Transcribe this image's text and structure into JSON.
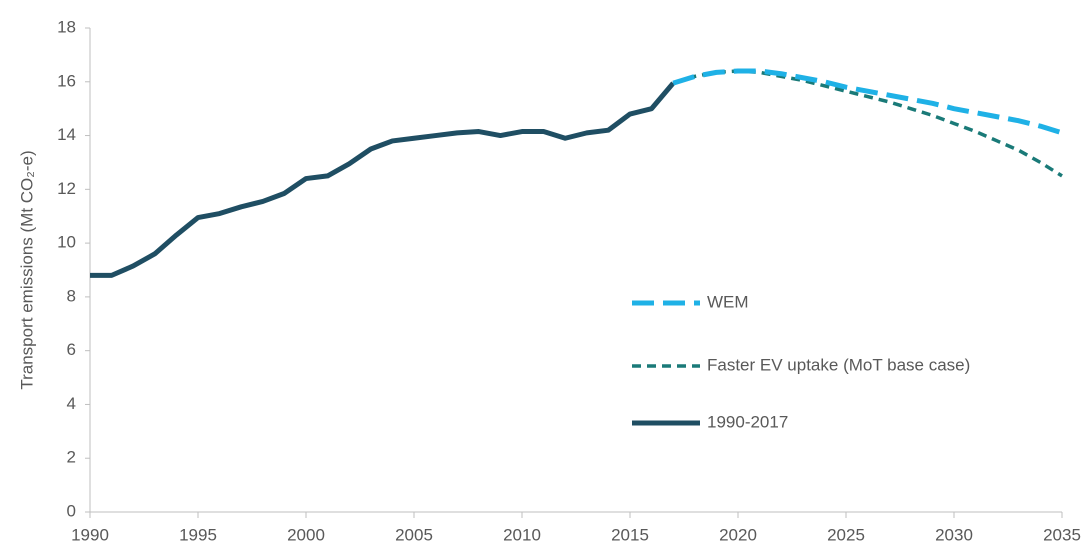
{
  "chart_data": {
    "type": "line",
    "y_label": "Transport emissions (Mt CO₂-e)",
    "xlim": [
      1990,
      2035
    ],
    "xticks": [
      1990,
      1995,
      2000,
      2005,
      2010,
      2015,
      2020,
      2025,
      2030,
      2035
    ],
    "ylim": [
      0,
      18
    ],
    "yticks": [
      0,
      2,
      4,
      6,
      8,
      10,
      12,
      14,
      16,
      18
    ],
    "grid": false,
    "legend": "center-right",
    "series": [
      {
        "name": "WEM",
        "color": "#1fb1e6",
        "dash": "long",
        "x": [
          2017,
          2018,
          2019,
          2020,
          2021,
          2022,
          2023,
          2024,
          2025,
          2026,
          2027,
          2028,
          2029,
          2030,
          2031,
          2032,
          2033,
          2034,
          2035
        ],
        "values": [
          15.95,
          16.2,
          16.35,
          16.4,
          16.4,
          16.3,
          16.15,
          16.0,
          15.8,
          15.65,
          15.5,
          15.35,
          15.2,
          15.0,
          14.85,
          14.7,
          14.55,
          14.35,
          14.1
        ]
      },
      {
        "name": "Faster EV uptake (MoT base case)",
        "color": "#1a7a78",
        "dash": "short",
        "x": [
          2017,
          2018,
          2019,
          2020,
          2021,
          2022,
          2023,
          2024,
          2025,
          2026,
          2027,
          2028,
          2029,
          2030,
          2031,
          2032,
          2033,
          2034,
          2035
        ],
        "values": [
          15.95,
          16.2,
          16.35,
          16.4,
          16.35,
          16.2,
          16.05,
          15.85,
          15.65,
          15.45,
          15.25,
          15.0,
          14.75,
          14.45,
          14.15,
          13.8,
          13.45,
          13.0,
          12.5
        ]
      },
      {
        "name": "1990-2017",
        "color": "#1f4e63",
        "dash": "solid",
        "x": [
          1990,
          1991,
          1992,
          1993,
          1994,
          1995,
          1996,
          1997,
          1998,
          1999,
          2000,
          2001,
          2002,
          2003,
          2004,
          2005,
          2006,
          2007,
          2008,
          2009,
          2010,
          2011,
          2012,
          2013,
          2014,
          2015,
          2016,
          2017
        ],
        "values": [
          8.8,
          8.8,
          9.15,
          9.6,
          10.3,
          10.95,
          11.1,
          11.35,
          11.55,
          11.85,
          12.4,
          12.5,
          12.95,
          13.5,
          13.8,
          13.9,
          14.0,
          14.1,
          14.15,
          14.0,
          14.15,
          14.15,
          13.9,
          14.1,
          14.2,
          14.8,
          15.0,
          15.95
        ]
      }
    ]
  }
}
